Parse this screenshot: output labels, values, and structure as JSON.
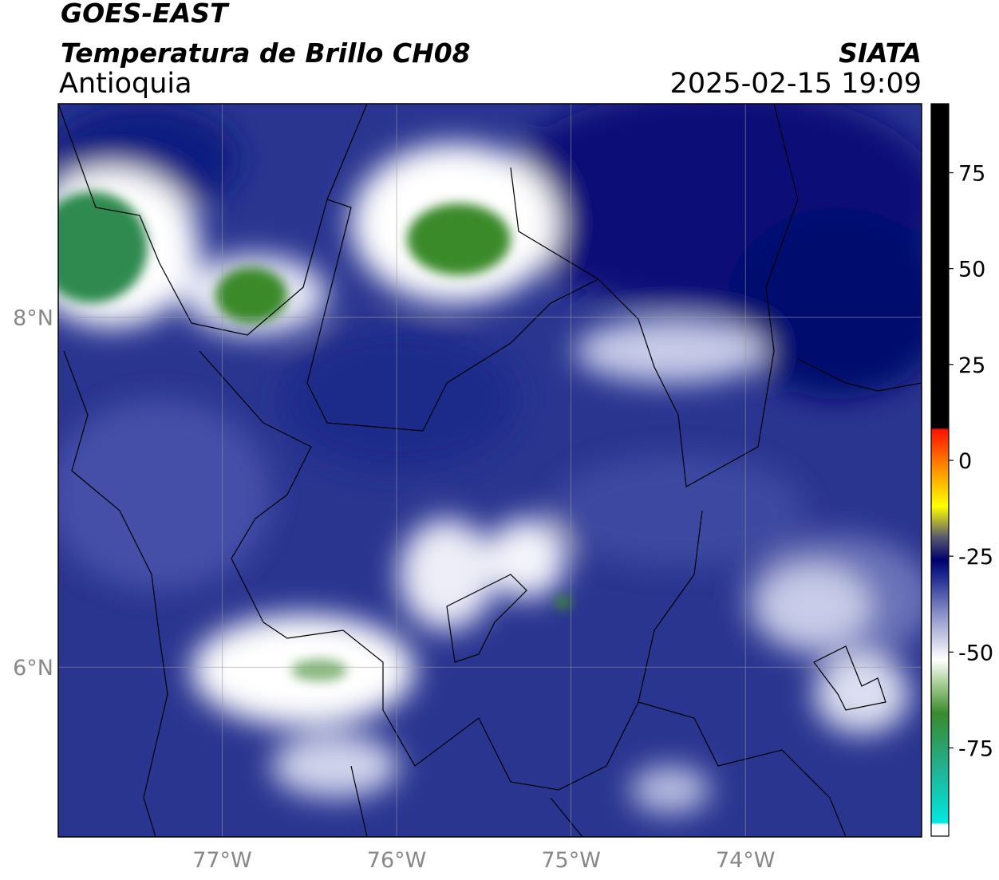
{
  "header": {
    "satellite": "GOES-EAST",
    "product": "Temperatura de Brillo CH08",
    "region": "Antioquia",
    "source": "SIATA",
    "timestamp": "2025-02-15 19:09"
  },
  "chart_data": {
    "type": "map",
    "xlim": [
      -77.94,
      -72.99
    ],
    "ylim": [
      5.03,
      9.22
    ],
    "xticks": [
      {
        "value": -77,
        "label": "77°W"
      },
      {
        "value": -76,
        "label": "76°W"
      },
      {
        "value": -75,
        "label": "75°W"
      },
      {
        "value": -74,
        "label": "74°W"
      }
    ],
    "yticks": [
      {
        "value": 6,
        "label": "6°N"
      },
      {
        "value": 8,
        "label": "8°N"
      }
    ],
    "grid": true,
    "colorbar": {
      "clim": [
        -98,
        93
      ],
      "ticks": [
        75,
        50,
        25,
        0,
        -25,
        -50,
        -75
      ],
      "stops": [
        {
          "value": -98,
          "color": "#ffffff"
        },
        {
          "value": -95,
          "color": "#ffffff"
        },
        {
          "value": -94.5,
          "color": "#00e8e0"
        },
        {
          "value": -80,
          "color": "#22b090"
        },
        {
          "value": -66,
          "color": "#3a8a2c"
        },
        {
          "value": -57,
          "color": "#b8d8a8"
        },
        {
          "value": -52,
          "color": "#ffffff"
        },
        {
          "value": -40,
          "color": "#8a90c8"
        },
        {
          "value": -30,
          "color": "#1c2790"
        },
        {
          "value": -26,
          "color": "#00006e"
        },
        {
          "value": -20,
          "color": "#5a5a70"
        },
        {
          "value": -12,
          "color": "#ffff00"
        },
        {
          "value": -3,
          "color": "#ff9900"
        },
        {
          "value": 8,
          "color": "#ff1100"
        },
        {
          "value": 8.5,
          "color": "#000000"
        },
        {
          "value": 93,
          "color": "#000000"
        }
      ]
    }
  }
}
